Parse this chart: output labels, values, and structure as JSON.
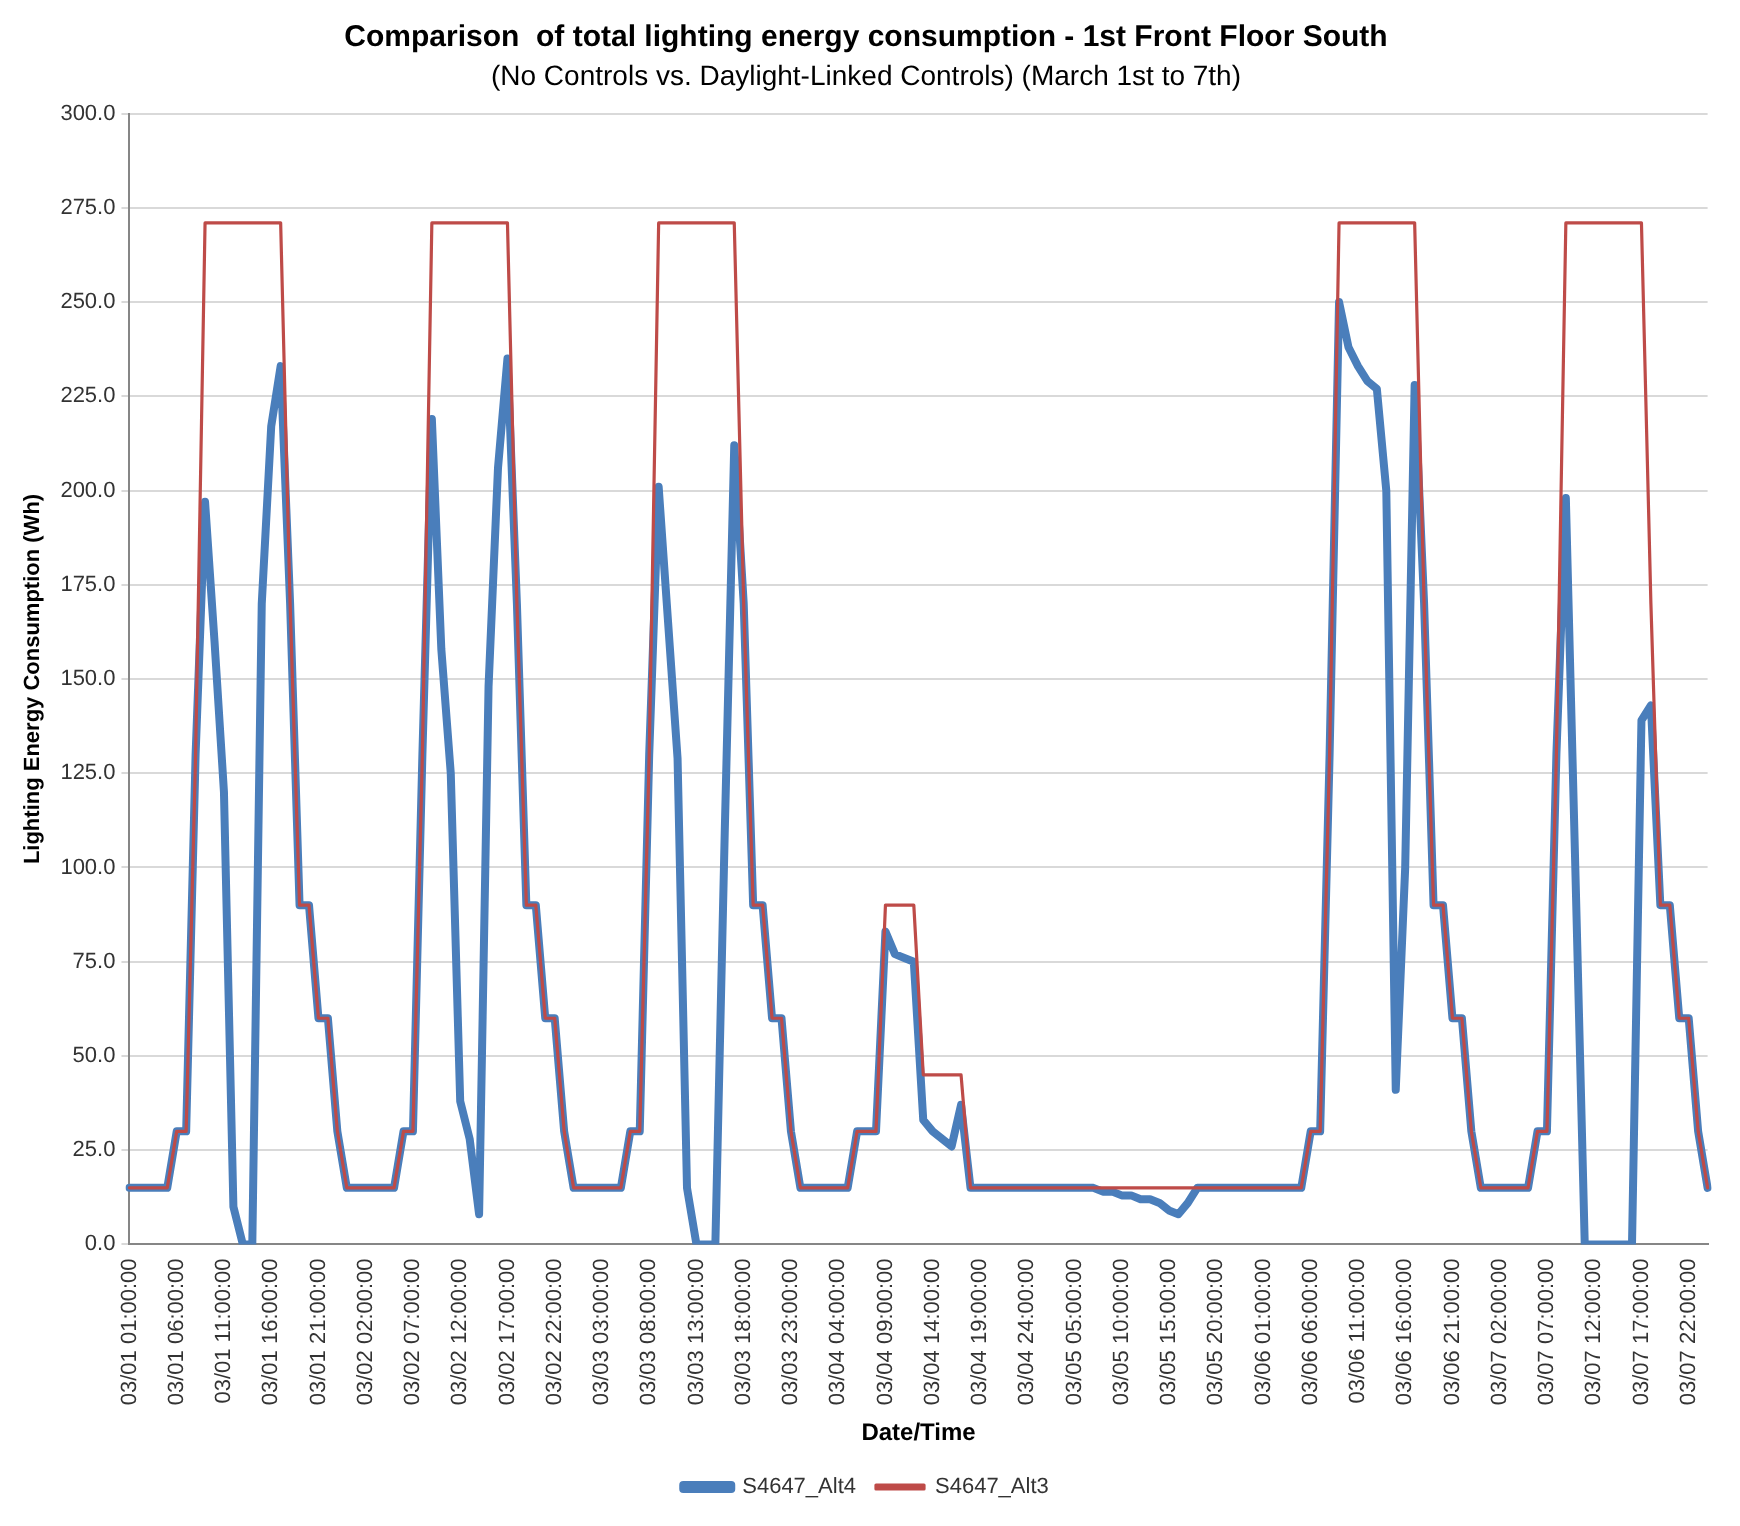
{
  "chart_data": {
    "type": "line",
    "title": "Comparison  of total lighting energy consumption - 1st Front Floor South",
    "subtitle": "(No Controls vs. Daylight-Linked Controls) (March 1st to 7th)",
    "xlabel": "Date/Time",
    "ylabel": "Lighting Energy Consumption (Wh)",
    "categories": [
      "03/01 01:00:00",
      null,
      null,
      null,
      null,
      "03/01 06:00:00",
      null,
      null,
      null,
      null,
      "03/01 11:00:00",
      null,
      null,
      null,
      null,
      "03/01 16:00:00",
      null,
      null,
      null,
      null,
      "03/01 21:00:00",
      null,
      null,
      null,
      null,
      "03/02 02:00:00",
      null,
      null,
      null,
      null,
      "03/02 07:00:00",
      null,
      null,
      null,
      null,
      "03/02 12:00:00",
      null,
      null,
      null,
      null,
      "03/02 17:00:00",
      null,
      null,
      null,
      null,
      "03/02 22:00:00",
      null,
      null,
      null,
      null,
      "03/03 03:00:00",
      null,
      null,
      null,
      null,
      "03/03 08:00:00",
      null,
      null,
      null,
      null,
      "03/03 13:00:00",
      null,
      null,
      null,
      null,
      "03/03 18:00:00",
      null,
      null,
      null,
      null,
      "03/03 23:00:00",
      null,
      null,
      null,
      null,
      "03/04 04:00:00",
      null,
      null,
      null,
      null,
      "03/04 09:00:00",
      null,
      null,
      null,
      null,
      "03/04 14:00:00",
      null,
      null,
      null,
      null,
      "03/04 19:00:00",
      null,
      null,
      null,
      null,
      "03/04 24:00:00",
      null,
      null,
      null,
      null,
      "03/05 05:00:00",
      null,
      null,
      null,
      null,
      "03/05 10:00:00",
      null,
      null,
      null,
      null,
      "03/05 15:00:00",
      null,
      null,
      null,
      null,
      "03/05 20:00:00",
      null,
      null,
      null,
      null,
      "03/06 01:00:00",
      null,
      null,
      null,
      null,
      "03/06 06:00:00",
      null,
      null,
      null,
      null,
      "03/06 11:00:00",
      null,
      null,
      null,
      null,
      "03/06 16:00:00",
      null,
      null,
      null,
      null,
      "03/06 21:00:00",
      null,
      null,
      null,
      null,
      "03/07 02:00:00",
      null,
      null,
      null,
      null,
      "03/07 07:00:00",
      null,
      null,
      null,
      null,
      "03/07 12:00:00",
      null,
      null,
      null,
      null,
      "03/07 17:00:00",
      null,
      null,
      null,
      null,
      "03/07 22:00:00",
      null,
      null
    ],
    "series": [
      {
        "name": "S4647_Alt4",
        "color": "#4a7ebb",
        "values": [
          15,
          15,
          15,
          15,
          15,
          30,
          30,
          130,
          197,
          160,
          120,
          10,
          0,
          0,
          170,
          217,
          233,
          170,
          90,
          90,
          60,
          60,
          30,
          15,
          15,
          15,
          15,
          15,
          15,
          30,
          30,
          130,
          219,
          158,
          125,
          38,
          28,
          8,
          148,
          206,
          235,
          170,
          90,
          90,
          60,
          60,
          30,
          15,
          15,
          15,
          15,
          15,
          15,
          30,
          30,
          130,
          201,
          165,
          129,
          15,
          0,
          0,
          0,
          110,
          212,
          170,
          90,
          90,
          60,
          60,
          30,
          15,
          15,
          15,
          15,
          15,
          15,
          30,
          30,
          30,
          83,
          77,
          76,
          75,
          33,
          30,
          28,
          26,
          37,
          15,
          15,
          15,
          15,
          15,
          15,
          15,
          15,
          15,
          15,
          15,
          15,
          15,
          15,
          14,
          14,
          13,
          13,
          12,
          12,
          11,
          9,
          8,
          11,
          15,
          15,
          15,
          15,
          15,
          15,
          15,
          15,
          15,
          15,
          15,
          15,
          30,
          30,
          130,
          250,
          238,
          233,
          229,
          227,
          200,
          41,
          100,
          228,
          170,
          90,
          90,
          60,
          60,
          30,
          15,
          15,
          15,
          15,
          15,
          15,
          30,
          30,
          130,
          198,
          100,
          0,
          0,
          0,
          0,
          0,
          0,
          139,
          143,
          90,
          90,
          60,
          60,
          30,
          15
        ]
      },
      {
        "name": "S4647_Alt3",
        "color": "#be4b48",
        "values": [
          15,
          15,
          15,
          15,
          15,
          30,
          30,
          130,
          271,
          271,
          271,
          271,
          271,
          271,
          271,
          271,
          271,
          170,
          90,
          90,
          60,
          60,
          30,
          15,
          15,
          15,
          15,
          15,
          15,
          30,
          30,
          130,
          271,
          271,
          271,
          271,
          271,
          271,
          271,
          271,
          271,
          170,
          90,
          90,
          60,
          60,
          30,
          15,
          15,
          15,
          15,
          15,
          15,
          30,
          30,
          130,
          271,
          271,
          271,
          271,
          271,
          271,
          271,
          271,
          271,
          170,
          90,
          90,
          60,
          60,
          30,
          15,
          15,
          15,
          15,
          15,
          15,
          30,
          30,
          30,
          90,
          90,
          90,
          90,
          45,
          45,
          45,
          45,
          45,
          15,
          15,
          15,
          15,
          15,
          15,
          15,
          15,
          15,
          15,
          15,
          15,
          15,
          15,
          15,
          15,
          15,
          15,
          15,
          15,
          15,
          15,
          15,
          15,
          15,
          15,
          15,
          15,
          15,
          15,
          15,
          15,
          15,
          15,
          15,
          15,
          30,
          30,
          130,
          271,
          271,
          271,
          271,
          271,
          271,
          271,
          271,
          271,
          170,
          90,
          90,
          60,
          60,
          30,
          15,
          15,
          15,
          15,
          15,
          15,
          30,
          30,
          130,
          271,
          271,
          271,
          271,
          271,
          271,
          271,
          271,
          271,
          170,
          90,
          90,
          60,
          60,
          30,
          15
        ]
      }
    ],
    "ylim": [
      0,
      300
    ],
    "yticks": [
      {
        "value": 0,
        "label": "0.0"
      },
      {
        "value": 25,
        "label": "25.0"
      },
      {
        "value": 50,
        "label": "50.0"
      },
      {
        "value": 75,
        "label": "75.0"
      },
      {
        "value": 100,
        "label": "100.0"
      },
      {
        "value": 125,
        "label": "125.0"
      },
      {
        "value": 150,
        "label": "150.0"
      },
      {
        "value": 175,
        "label": "175.0"
      },
      {
        "value": 200,
        "label": "200.0"
      },
      {
        "value": 225,
        "label": "225.0"
      },
      {
        "value": 250,
        "label": "250.0"
      },
      {
        "value": 275,
        "label": "275.0"
      },
      {
        "value": 300,
        "label": "300.0"
      }
    ],
    "grid": "y",
    "legend": "bottom",
    "marker": "none",
    "line_style": "solid"
  }
}
